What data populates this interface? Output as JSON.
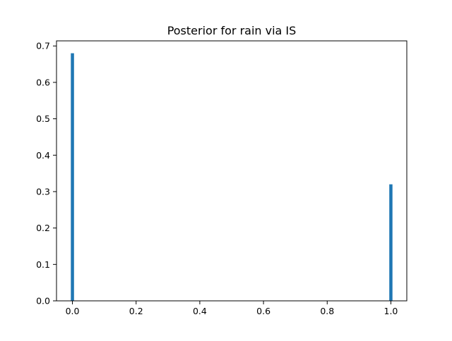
{
  "chart_data": {
    "type": "bar",
    "title": "Posterior for rain via IS",
    "xlabel": "",
    "ylabel": "",
    "x": [
      0.0,
      1.0
    ],
    "values": [
      0.68,
      0.32
    ],
    "bar_width": 0.01,
    "xlim": [
      -0.05,
      1.05
    ],
    "ylim": [
      0.0,
      0.714
    ],
    "xticks": [
      0.0,
      0.2,
      0.4,
      0.6,
      0.8,
      1.0
    ],
    "xtick_labels": [
      "0.0",
      "0.2",
      "0.4",
      "0.6",
      "0.8",
      "1.0"
    ],
    "yticks": [
      0.0,
      0.1,
      0.2,
      0.3,
      0.4,
      0.5,
      0.6,
      0.7
    ],
    "ytick_labels": [
      "0.0",
      "0.1",
      "0.2",
      "0.3",
      "0.4",
      "0.5",
      "0.6",
      "0.7"
    ],
    "grid": false,
    "legend": "none",
    "bar_color": "#1f77b4"
  }
}
